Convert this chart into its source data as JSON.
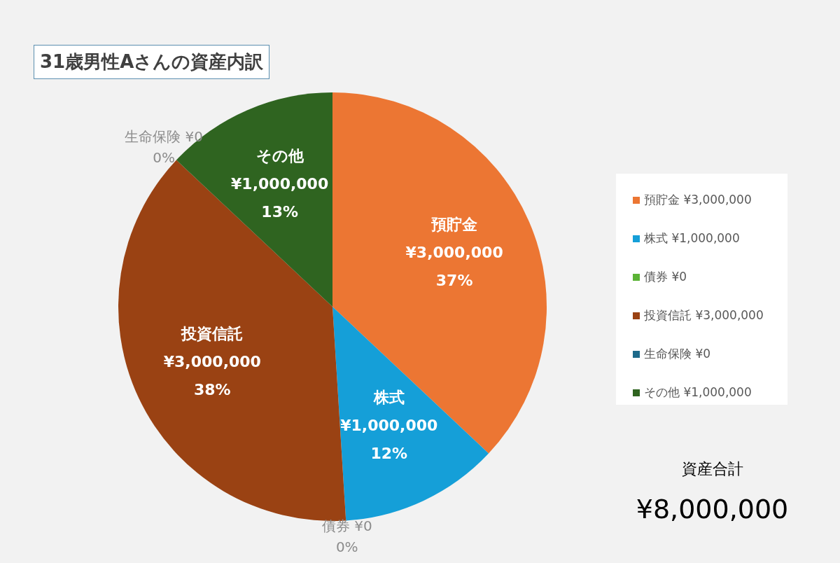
{
  "chart_data": {
    "type": "pie",
    "title": "31歳男性Aさんの資産内訳",
    "categories": [
      "預貯金 ¥3,000,000",
      "株式 ¥1,000,000",
      "債券 ¥0",
      "投資信託 ¥3,000,000",
      "生命保険 ¥0",
      "その他 ¥1,000,000"
    ],
    "values": [
      37,
      12,
      0,
      38,
      0,
      13
    ],
    "colors": [
      "#ec7633",
      "#159fd8",
      "#5bb336",
      "#9a4213",
      "#1d6a8a",
      "#2f6420"
    ],
    "value_labels": [
      "37%",
      "12%",
      "0%",
      "38%",
      "0%",
      "13%"
    ],
    "legend": "right",
    "annotations": [
      "資産合計",
      "¥8,000,000"
    ]
  }
}
